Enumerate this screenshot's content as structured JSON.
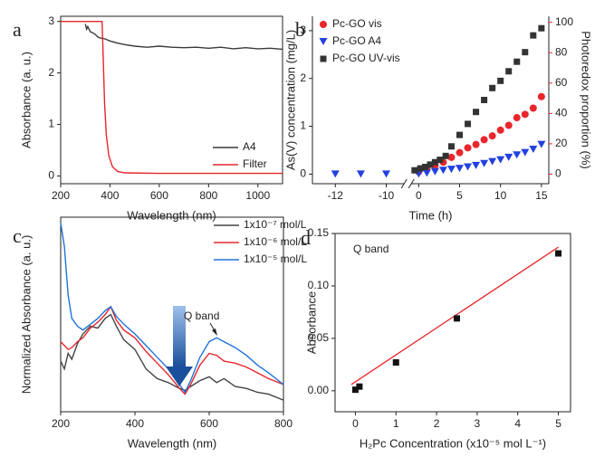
{
  "chart_data": [
    {
      "type": "line",
      "panel_label": "a",
      "x_label": "Wavelength (nm)",
      "y_label": "Absorbance (a. u.)",
      "xlim": [
        200,
        1100
      ],
      "ylim": [
        -0.15,
        3.1
      ],
      "xticks": [
        200,
        400,
        600,
        800,
        1000
      ],
      "yticks": [
        0,
        1,
        2,
        3
      ],
      "legend": "lower right",
      "series": [
        {
          "name": "A4",
          "color": "#3a3a3a",
          "x": [
            300,
            305,
            310,
            320,
            330,
            340,
            350,
            360,
            380,
            400,
            430,
            460,
            500,
            550,
            600,
            650,
            700,
            750,
            800,
            850,
            900,
            950,
            1000,
            1050,
            1100
          ],
          "values": [
            2.95,
            2.85,
            2.9,
            2.8,
            2.78,
            2.75,
            2.7,
            2.68,
            2.66,
            2.62,
            2.58,
            2.55,
            2.52,
            2.5,
            2.52,
            2.5,
            2.49,
            2.5,
            2.48,
            2.5,
            2.47,
            2.49,
            2.47,
            2.48,
            2.46
          ]
        },
        {
          "name": "Filter",
          "color": "#e8262b",
          "x": [
            200,
            368,
            372,
            378,
            385,
            395,
            410,
            430,
            460,
            600,
            1100
          ],
          "values": [
            3,
            3,
            2.4,
            1.4,
            0.8,
            0.4,
            0.18,
            0.09,
            0.06,
            0.05,
            0.05
          ]
        }
      ]
    },
    {
      "type": "scatter",
      "panel_label": "b",
      "x_label": "Time (h)",
      "y_label": "As(V) concentration (mg/L)",
      "y2_label": "Photoredox proportion (%)",
      "y2_color": "#e8262b",
      "x_segments": [
        [
          -12.9,
          -9.3
        ],
        [
          -0.9,
          15.9
        ]
      ],
      "ylim": [
        -0.2,
        3.3
      ],
      "y2lim": [
        -6.3,
        104
      ],
      "xticks": [
        -12,
        -10,
        0,
        5,
        10,
        15
      ],
      "yticks": [
        0,
        1,
        2,
        3
      ],
      "y2ticks": [
        0,
        20,
        40,
        60,
        80,
        100
      ],
      "legend": "upper left",
      "series": [
        {
          "name": "Pc-GO vis",
          "color": "#e8262b",
          "marker": "circle",
          "x": [
            0,
            1,
            2,
            3,
            4,
            5,
            6,
            7,
            8,
            9,
            10,
            11,
            12,
            13,
            14,
            15
          ],
          "values": [
            0.05,
            0.12,
            0.18,
            0.25,
            0.35,
            0.45,
            0.55,
            0.62,
            0.72,
            0.8,
            0.92,
            1.02,
            1.18,
            1.25,
            1.38,
            1.62
          ]
        },
        {
          "name": "Pc-GO A4",
          "color": "#2340e0",
          "marker": "triangle",
          "x": [
            -12,
            -11,
            -10,
            0,
            1,
            2,
            3,
            4,
            5,
            6,
            7,
            8,
            9,
            10,
            11,
            12,
            13,
            14,
            15
          ],
          "values": [
            0,
            0,
            0,
            0,
            0.02,
            0.05,
            0.08,
            0.1,
            0.12,
            0.15,
            0.18,
            0.22,
            0.26,
            0.3,
            0.35,
            0.4,
            0.45,
            0.52,
            0.62
          ]
        },
        {
          "name": "Pc-GO UV-vis",
          "color": "#333333",
          "marker": "square",
          "x": [
            -0.5,
            0.2,
            0.8,
            1.4,
            2,
            2.6,
            3.3,
            4,
            5,
            6,
            7,
            8,
            9,
            10,
            11,
            12,
            13,
            14,
            15
          ],
          "values": [
            0.08,
            0.12,
            0.15,
            0.2,
            0.25,
            0.3,
            0.38,
            0.58,
            0.82,
            1.05,
            1.3,
            1.55,
            1.8,
            1.95,
            2.15,
            2.35,
            2.55,
            2.9,
            3.05
          ]
        }
      ]
    },
    {
      "type": "line",
      "panel_label": "c",
      "x_label": "Wavelength (nm)",
      "y_label": "Normalized Absorbance (a. u.)",
      "annotation": "Q band",
      "xlim": [
        200,
        800
      ],
      "ylim": [
        0,
        1
      ],
      "xticks": [
        200,
        400,
        600,
        800
      ],
      "legend": "upper right",
      "series": [
        {
          "name": "1x10⁻⁷ mol/L",
          "color": "#444444",
          "x": [
            200,
            210,
            220,
            230,
            245,
            260,
            280,
            300,
            320,
            335,
            350,
            370,
            400,
            430,
            460,
            490,
            520,
            535,
            550,
            575,
            600,
            620,
            640,
            670,
            700,
            730,
            760,
            800
          ],
          "values": [
            0.26,
            0.22,
            0.3,
            0.27,
            0.35,
            0.4,
            0.44,
            0.43,
            0.48,
            0.5,
            0.44,
            0.37,
            0.32,
            0.22,
            0.17,
            0.15,
            0.12,
            0.11,
            0.13,
            0.16,
            0.18,
            0.15,
            0.17,
            0.13,
            0.12,
            0.1,
            0.09,
            0.06
          ]
        },
        {
          "name": "1x10⁻⁶ mol/L",
          "color": "#e8262b",
          "x": [
            200,
            210,
            220,
            230,
            245,
            260,
            280,
            300,
            320,
            335,
            350,
            370,
            400,
            430,
            460,
            490,
            520,
            535,
            550,
            575,
            600,
            620,
            640,
            670,
            700,
            730,
            760,
            800
          ],
          "values": [
            0.36,
            0.34,
            0.32,
            0.33,
            0.36,
            0.38,
            0.43,
            0.46,
            0.5,
            0.54,
            0.47,
            0.42,
            0.38,
            0.31,
            0.25,
            0.19,
            0.12,
            0.09,
            0.14,
            0.24,
            0.3,
            0.29,
            0.26,
            0.25,
            0.23,
            0.2,
            0.17,
            0.14
          ]
        },
        {
          "name": "1x10⁻⁵ mol/L",
          "color": "#1e73d8",
          "x": [
            200,
            210,
            220,
            230,
            245,
            260,
            280,
            300,
            320,
            335,
            350,
            370,
            400,
            430,
            460,
            490,
            520,
            535,
            550,
            575,
            600,
            620,
            640,
            670,
            700,
            730,
            760,
            800
          ],
          "values": [
            0.97,
            0.85,
            0.6,
            0.48,
            0.44,
            0.42,
            0.45,
            0.48,
            0.52,
            0.54,
            0.49,
            0.45,
            0.4,
            0.34,
            0.28,
            0.22,
            0.14,
            0.1,
            0.16,
            0.28,
            0.36,
            0.38,
            0.36,
            0.33,
            0.29,
            0.24,
            0.2,
            0.14
          ]
        }
      ]
    },
    {
      "type": "scatter",
      "panel_label": "d",
      "x_label": "H₂Pc Concentration (x10⁻⁵ mol L⁻¹)",
      "y_label": "Absorbance",
      "annotation": "Q band",
      "xlim": [
        -0.5,
        5.3
      ],
      "ylim": [
        -0.02,
        0.15
      ],
      "xticks": [
        0,
        1,
        2,
        3,
        4,
        5
      ],
      "yticks": [
        {
          "value": 0,
          "label": "0.00"
        },
        {
          "value": 0.05,
          "label": "0.05"
        },
        {
          "value": 0.1,
          "label": "0.10"
        },
        {
          "value": 0.15,
          "label": "0.15"
        }
      ],
      "series": [
        {
          "color": "#111111",
          "marker": "square",
          "x": [
            0,
            0.1,
            1,
            2.5,
            5
          ],
          "values": [
            0.001,
            0.004,
            0.027,
            0.069,
            0.131
          ]
        }
      ],
      "fit": {
        "color": "#e8262b",
        "x": [
          -0.1,
          5
        ],
        "values": [
          0.006,
          0.137
        ]
      }
    }
  ]
}
